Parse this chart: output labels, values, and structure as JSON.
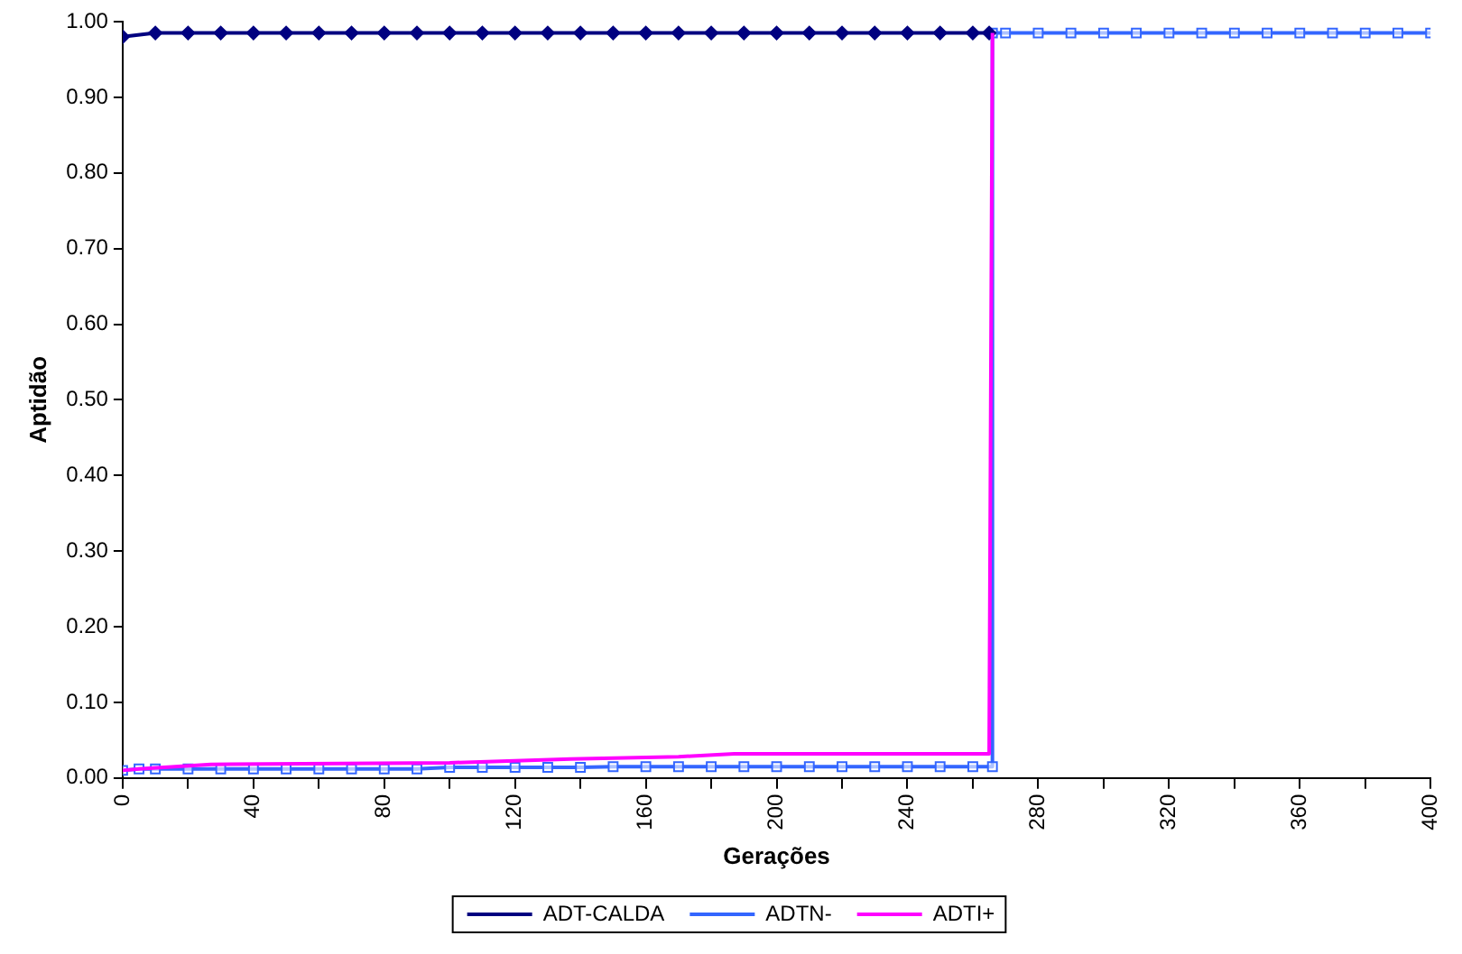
{
  "chart_data": {
    "type": "line",
    "xlabel": "Gerações",
    "ylabel": "Aptidão",
    "xlim": [
      0,
      400
    ],
    "ylim": [
      0,
      1
    ],
    "xticks": [
      0,
      {
        "value": 20,
        "label": null
      },
      40,
      {
        "value": 60,
        "label": null
      },
      80,
      {
        "value": 100,
        "label": null
      },
      120,
      {
        "value": 140,
        "label": null
      },
      160,
      {
        "value": 180,
        "label": null
      },
      200,
      {
        "value": 220,
        "label": null
      },
      240,
      {
        "value": 260,
        "label": null
      },
      280,
      {
        "value": 300,
        "label": null
      },
      320,
      {
        "value": 340,
        "label": null
      },
      360,
      {
        "value": 380,
        "label": null
      },
      400
    ],
    "yticks": [
      {
        "value": 0,
        "label": "0.00"
      },
      {
        "value": 0.1,
        "label": "0.10"
      },
      {
        "value": 0.2,
        "label": "0.20"
      },
      {
        "value": 0.3,
        "label": "0.30"
      },
      {
        "value": 0.4,
        "label": "0.40"
      },
      {
        "value": 0.5,
        "label": "0.50"
      },
      {
        "value": 0.6,
        "label": "0.60"
      },
      {
        "value": 0.7,
        "label": "0.70"
      },
      {
        "value": 0.8,
        "label": "0.80"
      },
      {
        "value": 0.9,
        "label": "0.90"
      },
      {
        "value": 1,
        "label": "1.00"
      }
    ],
    "grid": false,
    "legend": "bottom",
    "line_style": "solid",
    "series": [
      {
        "name": "ADT-CALDA",
        "color": "#000080",
        "marker": "diamond",
        "x": [
          0,
          10,
          20,
          30,
          40,
          50,
          60,
          70,
          80,
          90,
          100,
          110,
          120,
          130,
          140,
          150,
          160,
          170,
          180,
          190,
          200,
          210,
          220,
          230,
          240,
          250,
          260,
          265
        ],
        "values": [
          0.98,
          0.985,
          0.985,
          0.985,
          0.985,
          0.985,
          0.985,
          0.985,
          0.985,
          0.985,
          0.985,
          0.985,
          0.985,
          0.985,
          0.985,
          0.985,
          0.985,
          0.985,
          0.985,
          0.985,
          0.985,
          0.985,
          0.985,
          0.985,
          0.985,
          0.985,
          0.985,
          0.985
        ]
      },
      {
        "name": "ADTN-",
        "color": "#3366ff",
        "marker": "square",
        "x": [
          0,
          5,
          10,
          20,
          30,
          40,
          50,
          60,
          70,
          80,
          90,
          100,
          110,
          120,
          130,
          140,
          150,
          160,
          170,
          180,
          190,
          200,
          210,
          220,
          230,
          240,
          250,
          260,
          266,
          266,
          270,
          280,
          290,
          300,
          310,
          320,
          330,
          340,
          350,
          360,
          370,
          380,
          390,
          400
        ],
        "values": [
          0.01,
          0.012,
          0.012,
          0.012,
          0.012,
          0.012,
          0.012,
          0.012,
          0.012,
          0.012,
          0.012,
          0.014,
          0.014,
          0.014,
          0.014,
          0.014,
          0.015,
          0.015,
          0.015,
          0.015,
          0.015,
          0.015,
          0.015,
          0.015,
          0.015,
          0.015,
          0.015,
          0.015,
          0.015,
          0.985,
          0.985,
          0.985,
          0.985,
          0.985,
          0.985,
          0.985,
          0.985,
          0.985,
          0.985,
          0.985,
          0.985,
          0.985,
          0.985,
          0.985
        ]
      },
      {
        "name": "ADTI+",
        "color": "#ff00ff",
        "marker": "none",
        "x": [
          0,
          5,
          27,
          100,
          137,
          170,
          187,
          265,
          266
        ],
        "values": [
          0.01,
          0.012,
          0.018,
          0.02,
          0.025,
          0.028,
          0.032,
          0.032,
          0.985
        ]
      }
    ]
  }
}
